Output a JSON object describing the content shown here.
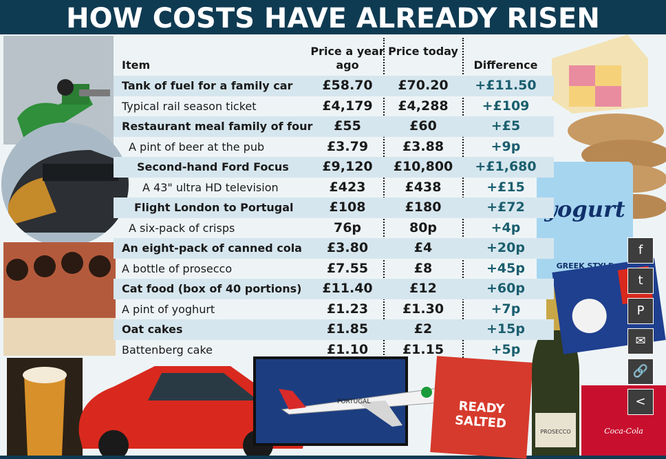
{
  "title": "HOW COSTS HAVE ALREADY RISEN",
  "headers": {
    "item": "Item",
    "year_ago": "Price a year ago",
    "today": "Price today",
    "difference": "Difference"
  },
  "rows": [
    {
      "item": "Tank of fuel for a family car",
      "year_ago": "£58.70",
      "today": "£70.20",
      "difference": "+£11.50"
    },
    {
      "item": "Typical rail season ticket",
      "year_ago": "£4,179",
      "today": "£4,288",
      "difference": "+£109"
    },
    {
      "item": "Restaurant meal family of four",
      "year_ago": "£55",
      "today": "£60",
      "difference": "+£5"
    },
    {
      "item": "A pint of beer at the pub",
      "year_ago": "£3.79",
      "today": "£3.88",
      "difference": "+9p"
    },
    {
      "item": "Second-hand Ford Focus",
      "year_ago": "£9,120",
      "today": "£10,800",
      "difference": "+£1,680"
    },
    {
      "item": "A 43\" ultra HD television",
      "year_ago": "£423",
      "today": "£438",
      "difference": "+£15"
    },
    {
      "item": "Flight London to Portugal",
      "year_ago": "£108",
      "today": "£180",
      "difference": "+£72"
    },
    {
      "item": "A six-pack of crisps",
      "year_ago": "76p",
      "today": "80p",
      "difference": "+4p"
    },
    {
      "item": "An eight-pack of canned cola",
      "year_ago": "£3.80",
      "today": "£4",
      "difference": "+20p"
    },
    {
      "item": "A bottle of prosecco",
      "year_ago": "£7.55",
      "today": "£8",
      "difference": "+45p"
    },
    {
      "item": "Cat food (box of 40 portions)",
      "year_ago": "£11.40",
      "today": "£12",
      "difference": "+60p"
    },
    {
      "item": "A pint of yoghurt",
      "year_ago": "£1.23",
      "today": "£1.30",
      "difference": "+7p"
    },
    {
      "item": "Oat cakes",
      "year_ago": "£1.85",
      "today": "£2",
      "difference": "+15p"
    },
    {
      "item": "Battenberg cake",
      "year_ago": "£1.10",
      "today": "£1.15",
      "difference": "+5p"
    }
  ],
  "share_buttons": [
    {
      "name": "facebook",
      "glyph": "f"
    },
    {
      "name": "twitter",
      "glyph": "t"
    },
    {
      "name": "pinterest",
      "glyph": "P"
    },
    {
      "name": "email",
      "glyph": "✉"
    },
    {
      "name": "link",
      "glyph": "🔗"
    },
    {
      "name": "share",
      "glyph": "<"
    }
  ],
  "product_labels": {
    "yogurt": "yogurt",
    "yogurt_sub": "GREEK STYLE",
    "crisps": "READY SALTED",
    "prosecco": "PROSECCO",
    "plane": "PORTUGAL",
    "cola": "Coca-Cola"
  },
  "colors": {
    "title_bg": "#0f3b52",
    "row_shade": "#d6e6ee",
    "difference_text": "#1a5e6e"
  }
}
